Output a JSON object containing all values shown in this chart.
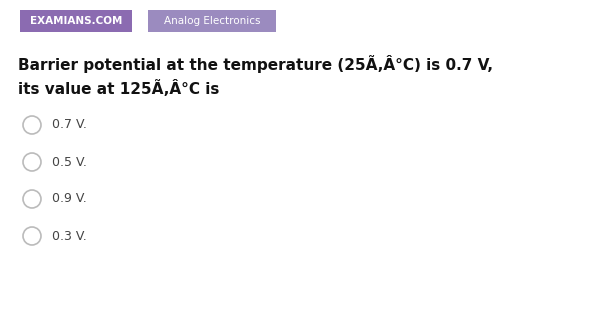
{
  "background_color": "#ffffff",
  "tag1_text": "EXAMIANS.COM",
  "tag1_bg": "#8B6BB1",
  "tag1_fg": "#ffffff",
  "tag2_text": "Analog Electronics",
  "tag2_bg": "#9B8BBF",
  "tag2_fg": "#ffffff",
  "question_line1": "Barrier potential at the temperature (25Ã,Â°C) is 0.7 V,",
  "question_line2": "its value at 125Ã,Â°C is",
  "options": [
    "0.7 V.",
    "0.5 V.",
    "0.9 V.",
    "0.3 V."
  ],
  "option_color": "#444444",
  "question_color": "#111111",
  "circle_edge": "#bbbbbb",
  "circle_face": "#ffffff",
  "fig_width": 6.0,
  "fig_height": 3.1,
  "dpi": 100
}
